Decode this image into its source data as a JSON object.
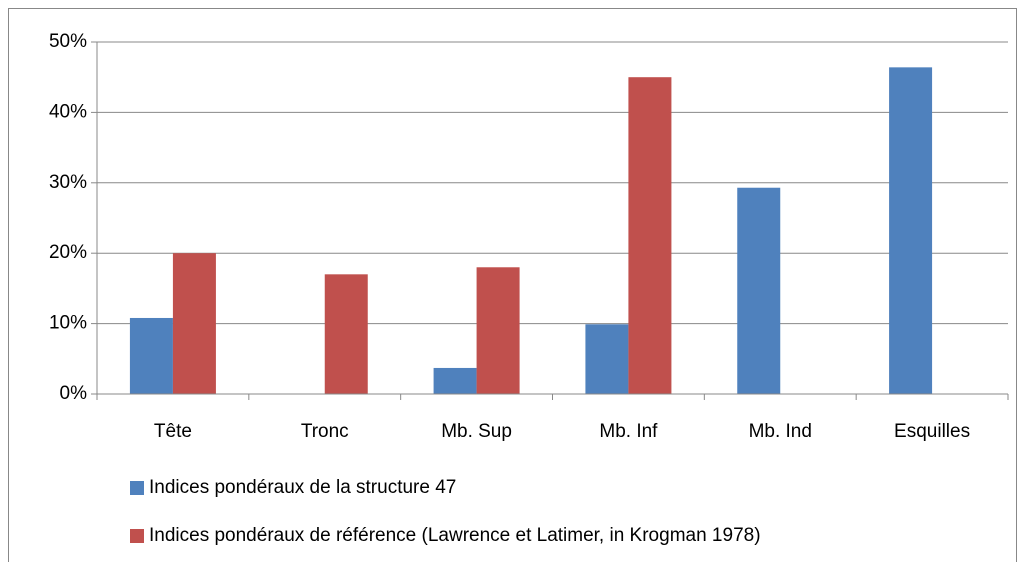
{
  "chart_data": {
    "type": "bar",
    "categories": [
      "Tête",
      "Tronc",
      "Mb. Sup",
      "Mb. Inf",
      "Mb. Ind",
      "Esquilles"
    ],
    "series": [
      {
        "name": "Indices pondéraux de la structure 47",
        "color": "#4f81bd",
        "values": [
          10.8,
          0,
          3.7,
          9.9,
          29.3,
          46.4
        ]
      },
      {
        "name": "Indices pondéraux de référence (Lawrence et Latimer, in Krogman 1978)",
        "color": "#c0504d",
        "values": [
          20,
          17,
          18,
          45,
          0,
          0
        ]
      }
    ],
    "ylim": [
      0,
      50
    ],
    "yticks": [
      {
        "value": 0,
        "label": "0%"
      },
      {
        "value": 10,
        "label": "10%"
      },
      {
        "value": 20,
        "label": "20%"
      },
      {
        "value": 30,
        "label": "30%"
      },
      {
        "value": 40,
        "label": "40%"
      },
      {
        "value": 50,
        "label": "50%"
      }
    ],
    "grid": true,
    "legend": "bottom"
  }
}
